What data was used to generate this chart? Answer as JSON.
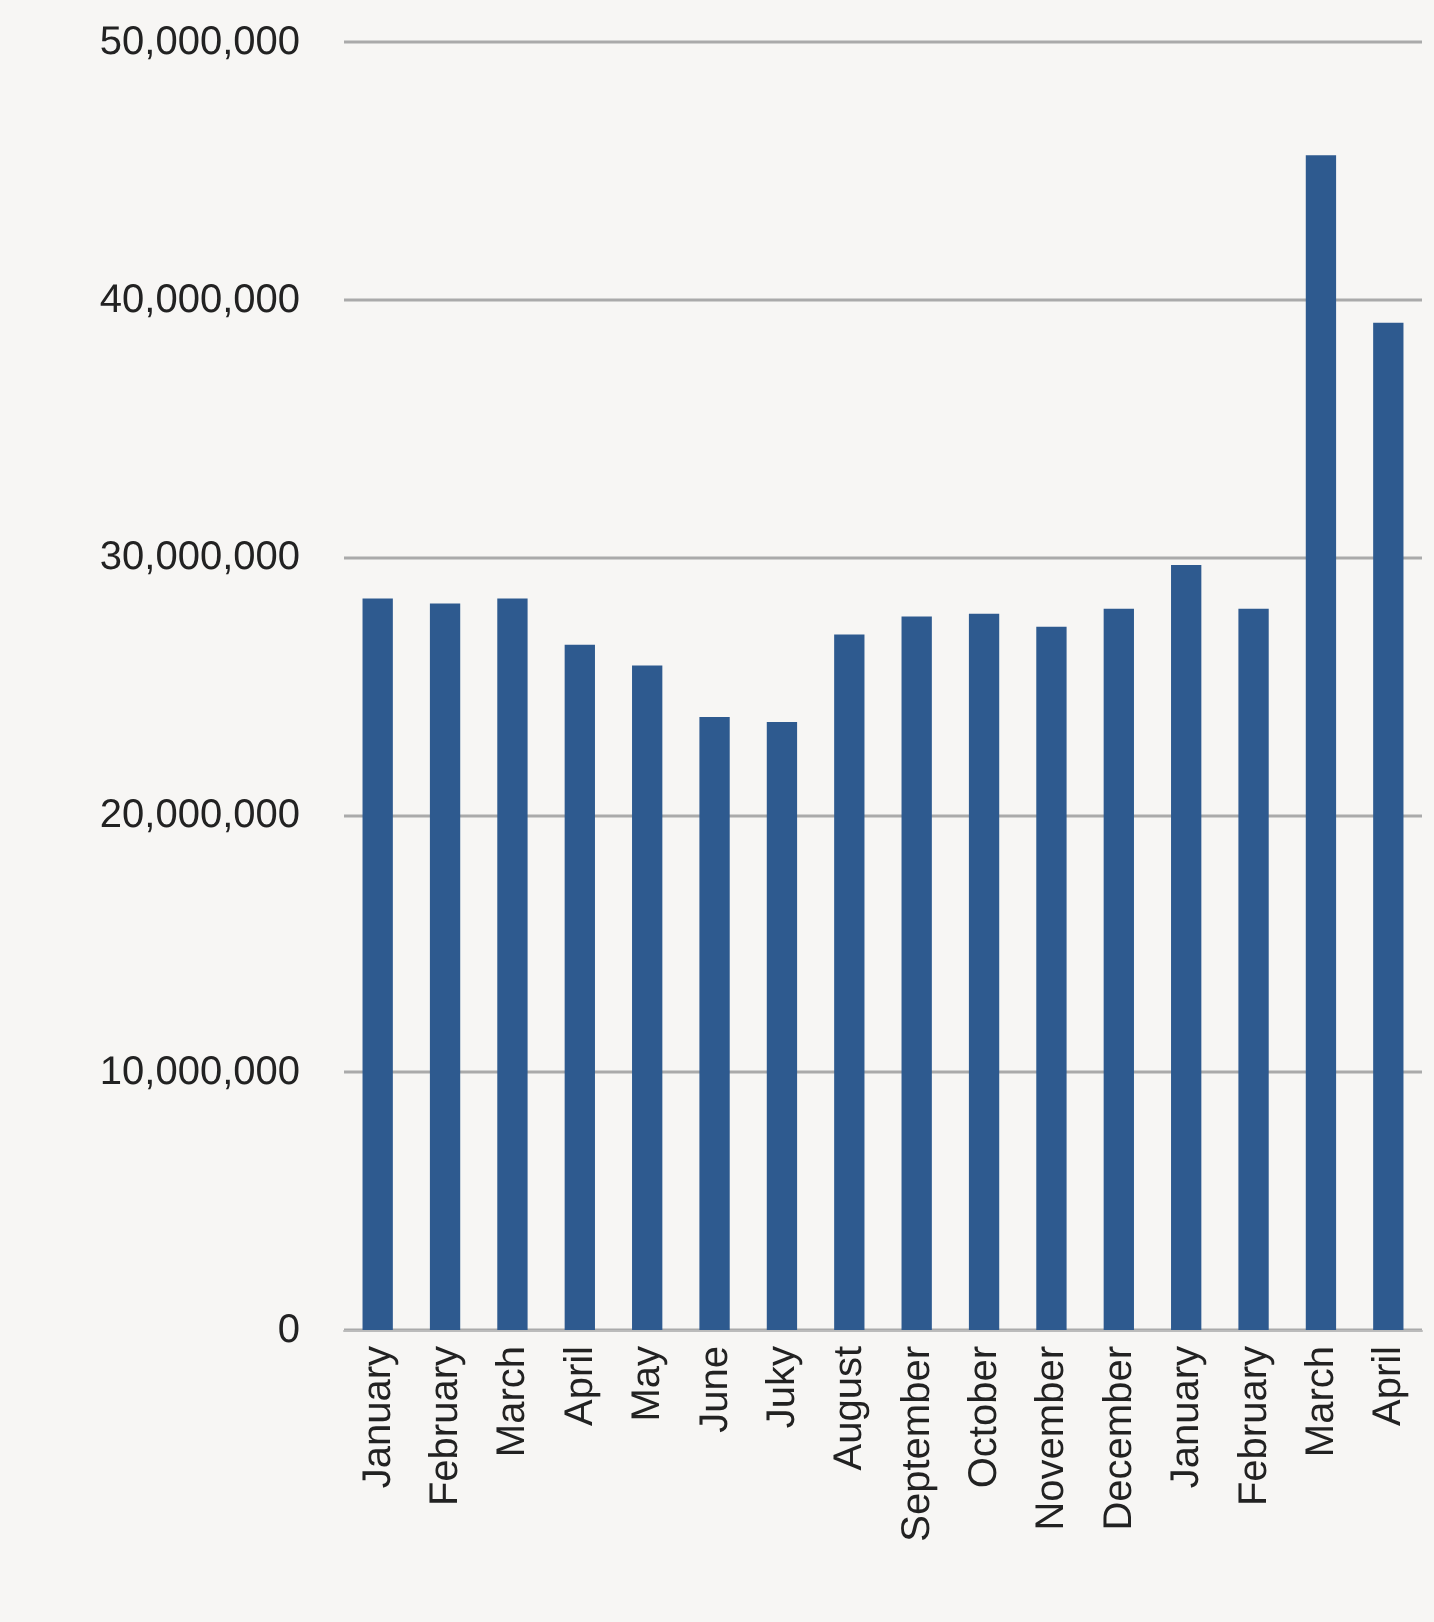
{
  "chart_data": {
    "type": "bar",
    "categories": [
      "January",
      "February",
      "March",
      "April",
      "May",
      "June",
      "Juky",
      "August",
      "September",
      "October",
      "November",
      "December",
      "January",
      "February",
      "March",
      "April"
    ],
    "values": [
      28400000,
      28200000,
      28400000,
      26600000,
      25800000,
      23800000,
      23600000,
      27000000,
      27700000,
      27800000,
      27300000,
      28000000,
      29700000,
      28000000,
      45600000,
      39100000
    ],
    "color": "#2e5a8f",
    "ylim": [
      0,
      50000000
    ],
    "yticks": [
      0,
      {
        "value": 10000000,
        "label": "10,000,000"
      },
      {
        "value": 20000000,
        "label": "20,000,000"
      },
      {
        "value": 30000000,
        "label": "30,000,000"
      },
      {
        "value": 40000000,
        "label": "40,000,000"
      },
      {
        "value": 50000000,
        "label": "50,000,000"
      }
    ],
    "grid": "y"
  }
}
